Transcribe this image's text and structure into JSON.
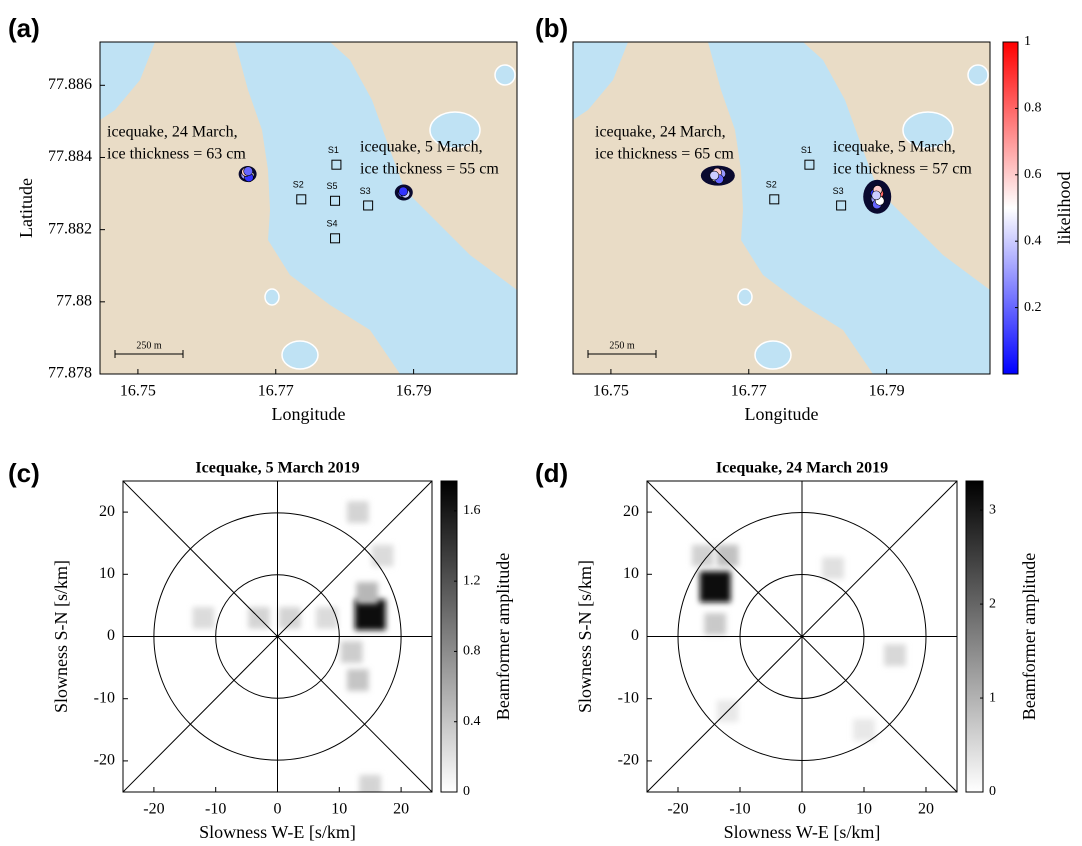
{
  "chart_data": [
    {
      "type": "map",
      "label": "(a)",
      "xlabel": "Longitude",
      "ylabel": "Latitude",
      "xlim": [
        16.7445,
        16.805
      ],
      "ylim": [
        77.878,
        77.8872
      ],
      "xticks": [
        16.75,
        16.77,
        16.79
      ],
      "yticks": [
        77.878,
        77.88,
        77.882,
        77.884,
        77.886
      ],
      "scale_bar": "250 m",
      "stations": [
        {
          "name": "S1",
          "lon": 16.7788,
          "lat": 77.8838
        },
        {
          "name": "S2",
          "lon": 16.7737,
          "lat": 77.88284
        },
        {
          "name": "S5",
          "lon": 16.7786,
          "lat": 77.8828
        },
        {
          "name": "S3",
          "lon": 16.7834,
          "lat": 77.88267
        },
        {
          "name": "S4",
          "lon": 16.7786,
          "lat": 77.88176
        }
      ],
      "events": [
        {
          "annotation": [
            "icequake, 24 March,",
            "ice thickness = 63 cm"
          ],
          "lon": [
            16.7659,
            16.7662,
            16.7656,
            16.7661,
            16.7657,
            16.766
          ],
          "lat": [
            77.88356,
            77.8835,
            77.88352,
            77.88345,
            77.8836,
            77.88362
          ],
          "likelihood": [
            0.9,
            0.5,
            0.3,
            0.1,
            0.6,
            0.2
          ]
        },
        {
          "annotation": [
            "icequake, 5 March,",
            "ice thickness = 55 cm"
          ],
          "lon": [
            16.7886,
            16.7884,
            16.7888,
            16.7885
          ],
          "lat": [
            77.88304,
            77.88302,
            77.883,
            77.88306
          ],
          "likelihood": [
            0.7,
            0.2,
            0.4,
            0.1
          ]
        }
      ]
    },
    {
      "type": "map",
      "label": "(b)",
      "xlabel": "Longitude",
      "xlim": [
        16.7445,
        16.805
      ],
      "ylim": [
        77.878,
        77.8872
      ],
      "xticks": [
        16.75,
        16.77,
        16.79
      ],
      "scale_bar": "250 m",
      "stations": [
        {
          "name": "S1",
          "lon": 16.7788,
          "lat": 77.8838
        },
        {
          "name": "S2",
          "lon": 16.7737,
          "lat": 77.88284
        },
        {
          "name": "S3",
          "lon": 16.7834,
          "lat": 77.88267
        }
      ],
      "events": [
        {
          "annotation": [
            "icequake, 24 March,",
            "ice thickness = 65 cm"
          ],
          "lon": [
            16.7655,
            16.7658,
            16.7652,
            16.766,
            16.7654,
            16.7657,
            16.765
          ],
          "lat": [
            77.88352,
            77.88348,
            77.88345,
            77.88355,
            77.88358,
            77.8834,
            77.8835
          ],
          "likelihood": [
            0.95,
            0.85,
            0.5,
            0.3,
            0.6,
            0.2,
            0.4
          ]
        },
        {
          "annotation": [
            "icequake, 5 March,",
            "ice thickness = 57 cm"
          ],
          "lon": [
            16.7887,
            16.7889,
            16.7884,
            16.7886,
            16.789,
            16.7883,
            16.7887,
            16.7885
          ],
          "lat": [
            77.8829,
            77.883,
            77.88285,
            77.8827,
            77.8828,
            77.883,
            77.8831,
            77.88295
          ],
          "likelihood": [
            0.9,
            0.8,
            0.3,
            0.2,
            0.5,
            0.1,
            0.6,
            0.4
          ]
        }
      ],
      "colorbar": {
        "label": "likelihood",
        "clim": [
          0,
          1
        ],
        "ticks": [
          0.2,
          0.4,
          0.6,
          0.8,
          1
        ]
      }
    },
    {
      "type": "heatmap",
      "label": "(c)",
      "title": "Icequake, 5 March 2019",
      "xlabel": "Slowness W-E [s/km]",
      "ylabel": "Slowness S-N [s/km]",
      "xlim": [
        -25,
        25
      ],
      "ylim": [
        -25,
        25
      ],
      "xticks": [
        -20,
        -10,
        0,
        10,
        20
      ],
      "yticks": [
        -20,
        -10,
        0,
        10,
        20
      ],
      "peaks": {
        "x": [
          15,
          14.5,
          13,
          12,
          -3,
          2,
          8,
          -12,
          15,
          13,
          17
        ],
        "y": [
          3.5,
          7,
          -7,
          -2.5,
          3,
          3,
          3,
          3,
          -24,
          20,
          13
        ],
        "amplitude": [
          1.7,
          0.5,
          0.4,
          0.35,
          0.3,
          0.3,
          0.25,
          0.25,
          0.3,
          0.3,
          0.25
        ]
      },
      "colorbar": {
        "label": "Beamformer amplitude",
        "clim": [
          0,
          1.77
        ],
        "ticks": [
          0,
          0.4,
          0.8,
          1.2,
          1.6
        ]
      }
    },
    {
      "type": "heatmap",
      "label": "(d)",
      "title": "Icequake, 24 March 2019",
      "xlabel": "Slowness W-E [s/km]",
      "ylabel": "Slowness S-N [s/km]",
      "xlim": [
        -25,
        25
      ],
      "ylim": [
        -25,
        25
      ],
      "xticks": [
        -20,
        -10,
        0,
        10,
        20
      ],
      "yticks": [
        -20,
        -10,
        0,
        10,
        20
      ],
      "peaks": {
        "x": [
          -14,
          -12,
          -14,
          -16,
          15,
          5,
          -12,
          10
        ],
        "y": [
          8,
          13,
          2,
          13,
          -3,
          11,
          -12,
          -15
        ],
        "amplitude": [
          3.2,
          0.8,
          0.7,
          0.6,
          0.5,
          0.4,
          0.3,
          0.3
        ]
      },
      "colorbar": {
        "label": "Beamformer amplitude",
        "clim": [
          0,
          3.31
        ],
        "ticks": [
          0,
          1,
          2,
          3
        ]
      }
    }
  ]
}
